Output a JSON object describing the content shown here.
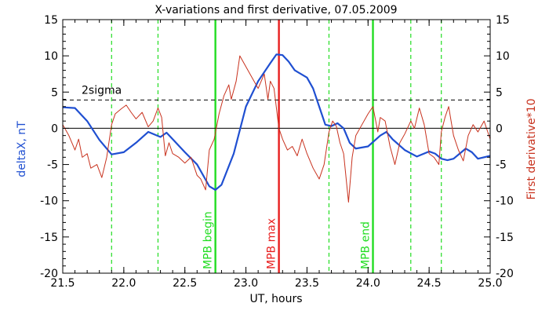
{
  "chart_data": {
    "type": "line",
    "title": "X-variations and first derivative, 07.05.2009",
    "xlabel": "UT, hours",
    "ylabel_left": "deltaX, nT",
    "ylabel_right": "First derivative*10",
    "xlim": [
      21.5,
      25.0
    ],
    "ylim": [
      -20,
      15
    ],
    "xticks": [
      21.5,
      22.0,
      22.5,
      23.0,
      23.5,
      24.0,
      24.5,
      25.0
    ],
    "xtick_labels": [
      "21.5",
      "22.0",
      "22.5",
      "23.0",
      "23.5",
      "24.0",
      "24.5",
      "25.0"
    ],
    "yticks": [
      -20,
      -15,
      -10,
      -5,
      0,
      5,
      10,
      15
    ],
    "ytick_labels": [
      "-20",
      "-15",
      "-10",
      "-5",
      "0",
      "5",
      "10",
      "15"
    ],
    "threshold": {
      "value": 3.9,
      "label": "2sigma",
      "style": "dashed"
    },
    "zero_line": 0,
    "colors": {
      "deltaX": "#1f4fd1",
      "derivative": "#c8321e",
      "mpb": "#22dd22",
      "max": "#e81e1e",
      "dashed": "#22dd22"
    },
    "dashed_verticals": [
      21.9,
      22.28,
      23.68,
      24.35,
      24.6
    ],
    "markers": [
      {
        "x": 22.75,
        "label": "MPB begin",
        "color": "#22dd22"
      },
      {
        "x": 23.27,
        "label": "MPB max",
        "color": "#e81e1e"
      },
      {
        "x": 24.04,
        "label": "MPB end",
        "color": "#22dd22"
      }
    ],
    "series": [
      {
        "key": "deltaX",
        "axis": "left",
        "points": [
          [
            21.5,
            2.9
          ],
          [
            21.6,
            2.8
          ],
          [
            21.7,
            1.0
          ],
          [
            21.8,
            -1.6
          ],
          [
            21.9,
            -3.6
          ],
          [
            22.0,
            -3.3
          ],
          [
            22.1,
            -2.0
          ],
          [
            22.2,
            -0.5
          ],
          [
            22.3,
            -1.2
          ],
          [
            22.35,
            -0.6
          ],
          [
            22.4,
            -1.5
          ],
          [
            22.5,
            -3.3
          ],
          [
            22.6,
            -5.0
          ],
          [
            22.7,
            -8.0
          ],
          [
            22.75,
            -8.5
          ],
          [
            22.8,
            -7.8
          ],
          [
            22.9,
            -3.5
          ],
          [
            23.0,
            3.0
          ],
          [
            23.1,
            6.5
          ],
          [
            23.2,
            9.0
          ],
          [
            23.25,
            10.2
          ],
          [
            23.3,
            10.1
          ],
          [
            23.35,
            9.2
          ],
          [
            23.4,
            8.0
          ],
          [
            23.5,
            7.0
          ],
          [
            23.55,
            5.5
          ],
          [
            23.6,
            3.0
          ],
          [
            23.65,
            0.5
          ],
          [
            23.7,
            0.3
          ],
          [
            23.75,
            0.7
          ],
          [
            23.8,
            0.0
          ],
          [
            23.85,
            -2.0
          ],
          [
            23.9,
            -2.8
          ],
          [
            24.0,
            -2.5
          ],
          [
            24.1,
            -1.0
          ],
          [
            24.15,
            -0.5
          ],
          [
            24.2,
            -1.5
          ],
          [
            24.3,
            -3.0
          ],
          [
            24.4,
            -3.9
          ],
          [
            24.5,
            -3.2
          ],
          [
            24.55,
            -3.5
          ],
          [
            24.6,
            -4.2
          ],
          [
            24.65,
            -4.4
          ],
          [
            24.7,
            -4.2
          ],
          [
            24.75,
            -3.5
          ],
          [
            24.8,
            -2.8
          ],
          [
            24.85,
            -3.3
          ],
          [
            24.9,
            -4.2
          ],
          [
            25.0,
            -3.8
          ]
        ]
      },
      {
        "key": "derivative",
        "axis": "right",
        "points": [
          [
            21.5,
            0.5
          ],
          [
            21.55,
            -1.0
          ],
          [
            21.6,
            -3.0
          ],
          [
            21.63,
            -1.5
          ],
          [
            21.66,
            -4.0
          ],
          [
            21.7,
            -3.5
          ],
          [
            21.73,
            -5.5
          ],
          [
            21.78,
            -5.0
          ],
          [
            21.82,
            -6.8
          ],
          [
            21.86,
            -4.0
          ],
          [
            21.9,
            0.5
          ],
          [
            21.93,
            2.0
          ],
          [
            21.98,
            2.7
          ],
          [
            22.02,
            3.2
          ],
          [
            22.06,
            2.2
          ],
          [
            22.1,
            1.3
          ],
          [
            22.15,
            2.2
          ],
          [
            22.2,
            0.2
          ],
          [
            22.24,
            1.0
          ],
          [
            22.28,
            2.8
          ],
          [
            22.31,
            1.5
          ],
          [
            22.34,
            -3.8
          ],
          [
            22.37,
            -2.0
          ],
          [
            22.4,
            -3.5
          ],
          [
            22.45,
            -4.0
          ],
          [
            22.5,
            -4.8
          ],
          [
            22.55,
            -4.0
          ],
          [
            22.6,
            -6.5
          ],
          [
            22.63,
            -7.0
          ],
          [
            22.67,
            -8.5
          ],
          [
            22.7,
            -3.0
          ],
          [
            22.74,
            -1.5
          ],
          [
            22.78,
            2.0
          ],
          [
            22.82,
            4.5
          ],
          [
            22.86,
            6.0
          ],
          [
            22.88,
            4.0
          ],
          [
            22.92,
            6.5
          ],
          [
            22.95,
            10.0
          ],
          [
            23.0,
            8.5
          ],
          [
            23.05,
            7.0
          ],
          [
            23.1,
            5.5
          ],
          [
            23.15,
            7.5
          ],
          [
            23.18,
            4.0
          ],
          [
            23.2,
            6.5
          ],
          [
            23.23,
            5.5
          ],
          [
            23.27,
            0.0
          ],
          [
            23.3,
            -1.5
          ],
          [
            23.34,
            -3.0
          ],
          [
            23.38,
            -2.5
          ],
          [
            23.42,
            -3.8
          ],
          [
            23.46,
            -1.5
          ],
          [
            23.5,
            -3.5
          ],
          [
            23.55,
            -5.5
          ],
          [
            23.6,
            -7.0
          ],
          [
            23.64,
            -5.0
          ],
          [
            23.68,
            -0.5
          ],
          [
            23.71,
            1.0
          ],
          [
            23.74,
            0.3
          ],
          [
            23.77,
            -2.0
          ],
          [
            23.8,
            -3.5
          ],
          [
            23.84,
            -10.2
          ],
          [
            23.87,
            -4.0
          ],
          [
            23.9,
            -1.0
          ],
          [
            23.95,
            0.5
          ],
          [
            24.0,
            2.0
          ],
          [
            24.04,
            3.0
          ],
          [
            24.08,
            -0.5
          ],
          [
            24.1,
            1.5
          ],
          [
            24.14,
            1.0
          ],
          [
            24.18,
            -2.5
          ],
          [
            24.22,
            -5.0
          ],
          [
            24.26,
            -2.0
          ],
          [
            24.3,
            -0.8
          ],
          [
            24.35,
            1.0
          ],
          [
            24.38,
            0.0
          ],
          [
            24.42,
            2.8
          ],
          [
            24.46,
            0.5
          ],
          [
            24.5,
            -3.5
          ],
          [
            24.54,
            -4.0
          ],
          [
            24.58,
            -5.0
          ],
          [
            24.6,
            -0.5
          ],
          [
            24.63,
            1.5
          ],
          [
            24.66,
            3.0
          ],
          [
            24.7,
            -1.0
          ],
          [
            24.74,
            -3.0
          ],
          [
            24.78,
            -4.5
          ],
          [
            24.82,
            -1.0
          ],
          [
            24.86,
            0.5
          ],
          [
            24.9,
            -0.5
          ],
          [
            24.95,
            1.0
          ],
          [
            25.0,
            -1.5
          ]
        ]
      }
    ]
  }
}
